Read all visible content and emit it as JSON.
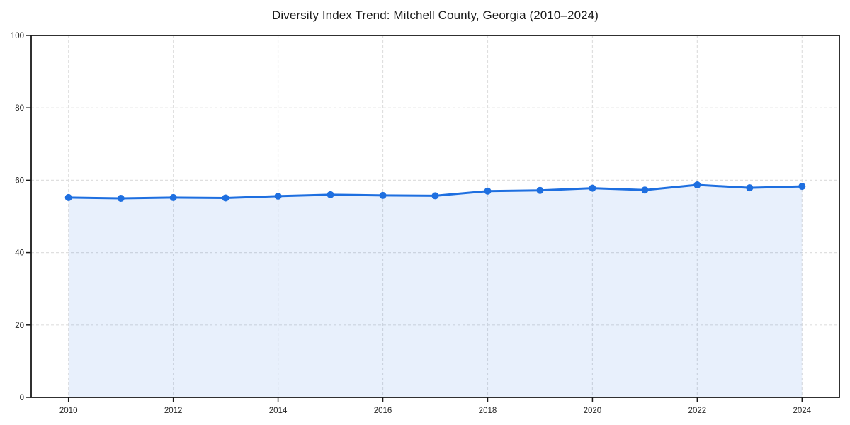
{
  "chart_data": {
    "type": "area",
    "title": "Diversity Index Trend: Mitchell County, Georgia (2010–2024)",
    "x": [
      2010,
      2011,
      2012,
      2013,
      2014,
      2015,
      2016,
      2017,
      2018,
      2019,
      2020,
      2021,
      2022,
      2023,
      2024
    ],
    "series": [
      {
        "name": "Diversity Index",
        "values": [
          55.2,
          55.0,
          55.2,
          55.1,
          55.6,
          56.0,
          55.8,
          55.7,
          57.0,
          57.2,
          57.8,
          57.3,
          58.7,
          57.9,
          58.3
        ]
      }
    ],
    "xlabel": "",
    "ylabel": "",
    "ylim": [
      0,
      100
    ],
    "yticks": [
      0,
      20,
      40,
      60,
      80,
      100
    ],
    "xticks": [
      2010,
      2012,
      2014,
      2016,
      2018,
      2020,
      2022,
      2024
    ],
    "grid": true,
    "grid_style": "dashed",
    "legend_position": "none",
    "colors": {
      "line": "#1e6fe0",
      "marker": "#1e6fe0",
      "fill_opacity": 0.1,
      "gridline": "#dfdfdf",
      "axis": "#1a1a1a",
      "tick_text": "#262626",
      "title_text": "#1a1a1a",
      "background": "#ffffff"
    }
  }
}
